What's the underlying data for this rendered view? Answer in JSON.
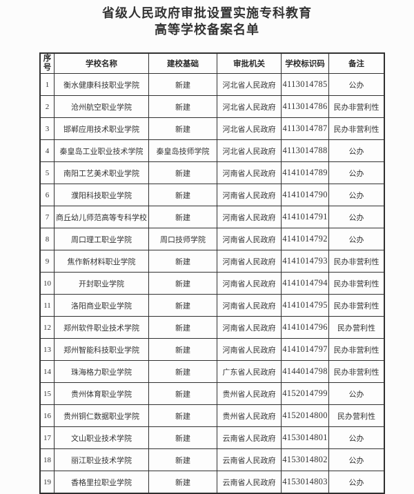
{
  "document": {
    "title_line1": "省级人民政府审批设置实施专科教育",
    "title_line2": "高等学校备案名单"
  },
  "table": {
    "headers": {
      "no": "序号",
      "name": "学校名称",
      "basis": "建校基础",
      "authority": "审批机关",
      "code": "学校标识码",
      "remark": "备注"
    },
    "rows": [
      {
        "no": "1",
        "name": "衡水健康科技职业学院",
        "basis": "新建",
        "authority": "河北省人民政府",
        "code": "4113014785",
        "remark": "公办"
      },
      {
        "no": "2",
        "name": "沧州航空职业学院",
        "basis": "新建",
        "authority": "河北省人民政府",
        "code": "4113014786",
        "remark": "民办非营利性"
      },
      {
        "no": "3",
        "name": "邯郸应用技术职业学院",
        "basis": "新建",
        "authority": "河北省人民政府",
        "code": "4113014787",
        "remark": "民办非营利性"
      },
      {
        "no": "4",
        "name": "秦皇岛工业职业技术学院",
        "basis": "秦皇岛技师学院",
        "authority": "河北省人民政府",
        "code": "4113014788",
        "remark": "公办"
      },
      {
        "no": "5",
        "name": "南阳工艺美术职业学院",
        "basis": "新建",
        "authority": "河南省人民政府",
        "code": "4141014789",
        "remark": "公办"
      },
      {
        "no": "6",
        "name": "濮阳科技职业学院",
        "basis": "新建",
        "authority": "河南省人民政府",
        "code": "4141014790",
        "remark": "公办"
      },
      {
        "no": "7",
        "name": "商丘幼儿师范高等专科学校",
        "basis": "新建",
        "authority": "河南省人民政府",
        "code": "4141014791",
        "remark": "公办"
      },
      {
        "no": "8",
        "name": "周口理工职业学院",
        "basis": "周口技师学院",
        "authority": "河南省人民政府",
        "code": "4141014792",
        "remark": "公办"
      },
      {
        "no": "9",
        "name": "焦作新材料职业学院",
        "basis": "新建",
        "authority": "河南省人民政府",
        "code": "4141014793",
        "remark": "民办非营利性"
      },
      {
        "no": "10",
        "name": "开封职业学院",
        "basis": "新建",
        "authority": "河南省人民政府",
        "code": "4141014794",
        "remark": "民办非营利性"
      },
      {
        "no": "11",
        "name": "洛阳商业职业学院",
        "basis": "新建",
        "authority": "河南省人民政府",
        "code": "4141014795",
        "remark": "民办非营利性"
      },
      {
        "no": "12",
        "name": "郑州软件职业技术学院",
        "basis": "新建",
        "authority": "河南省人民政府",
        "code": "4141014796",
        "remark": "民办营利性"
      },
      {
        "no": "13",
        "name": "郑州智能科技职业学院",
        "basis": "新建",
        "authority": "河南省人民政府",
        "code": "4141014797",
        "remark": "民办非营利性"
      },
      {
        "no": "14",
        "name": "珠海格力职业学院",
        "basis": "新建",
        "authority": "广东省人民政府",
        "code": "4144014798",
        "remark": "民办非营利性"
      },
      {
        "no": "15",
        "name": "贵州体育职业学院",
        "basis": "新建",
        "authority": "贵州省人民政府",
        "code": "4152014799",
        "remark": "公办"
      },
      {
        "no": "16",
        "name": "贵州铜仁数据职业学院",
        "basis": "新建",
        "authority": "贵州省人民政府",
        "code": "4152014800",
        "remark": "民办营利性"
      },
      {
        "no": "17",
        "name": "文山职业技术学院",
        "basis": "新建",
        "authority": "云南省人民政府",
        "code": "4153014801",
        "remark": "公办"
      },
      {
        "no": "18",
        "name": "丽江职业技术学院",
        "basis": "新建",
        "authority": "云南省人民政府",
        "code": "4153014802",
        "remark": "公办"
      },
      {
        "no": "19",
        "name": "香格里拉职业学院",
        "basis": "新建",
        "authority": "云南省人民政府",
        "code": "4153014803",
        "remark": "公办"
      }
    ]
  },
  "colors": {
    "text": "#2b2b2b",
    "border": "#2f2f2f",
    "background": "#fcfcfc"
  }
}
